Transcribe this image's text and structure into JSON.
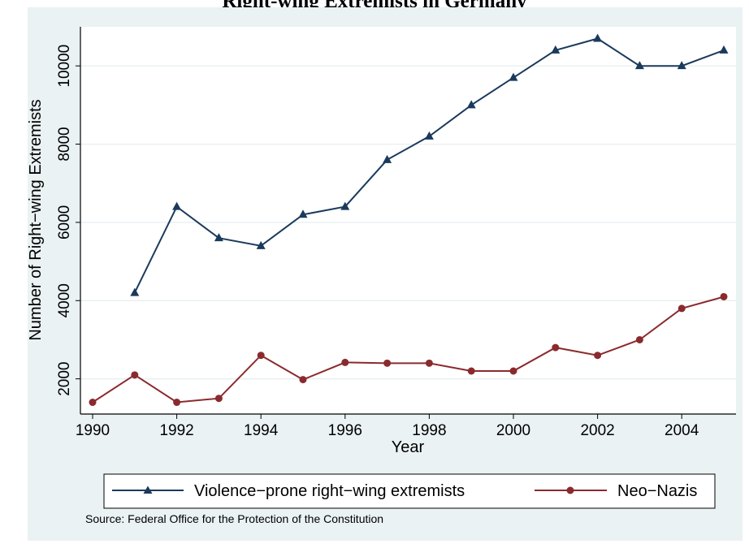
{
  "chart_data": {
    "type": "line",
    "title": "Right-wing Extremists in Germany",
    "xlabel": "Year",
    "ylabel": "Number of Right−wing Extremists",
    "xlim": [
      1990,
      2005
    ],
    "ylim": [
      1100,
      11000
    ],
    "xticks": [
      1990,
      1992,
      1994,
      1996,
      1998,
      2000,
      2002,
      2004
    ],
    "yticks": [
      2000,
      4000,
      6000,
      8000,
      10000
    ],
    "grid": true,
    "legend_position": "bottom",
    "series": [
      {
        "name": "Violence−prone right−wing extremists",
        "color": "#1a3a5c",
        "marker": "triangle",
        "x": [
          1991,
          1992,
          1993,
          1994,
          1995,
          1996,
          1997,
          1998,
          1999,
          2000,
          2001,
          2002,
          2003,
          2004,
          2005
        ],
        "values": [
          4200,
          6400,
          5600,
          5400,
          6200,
          6400,
          7600,
          8200,
          9000,
          9700,
          10400,
          10700,
          10000,
          10000,
          10400
        ]
      },
      {
        "name": "Neo−Nazis",
        "color": "#8b2a2e",
        "marker": "circle",
        "x": [
          1990,
          1991,
          1992,
          1993,
          1994,
          1995,
          1996,
          1997,
          1998,
          1999,
          2000,
          2001,
          2002,
          2003,
          2004,
          2005
        ],
        "values": [
          1400,
          2100,
          1400,
          1500,
          2600,
          1980,
          2420,
          2400,
          2400,
          2200,
          2200,
          2800,
          2600,
          3000,
          3800,
          4100
        ]
      }
    ],
    "note": "Source: Federal Office for the Protection of the Constitution"
  }
}
